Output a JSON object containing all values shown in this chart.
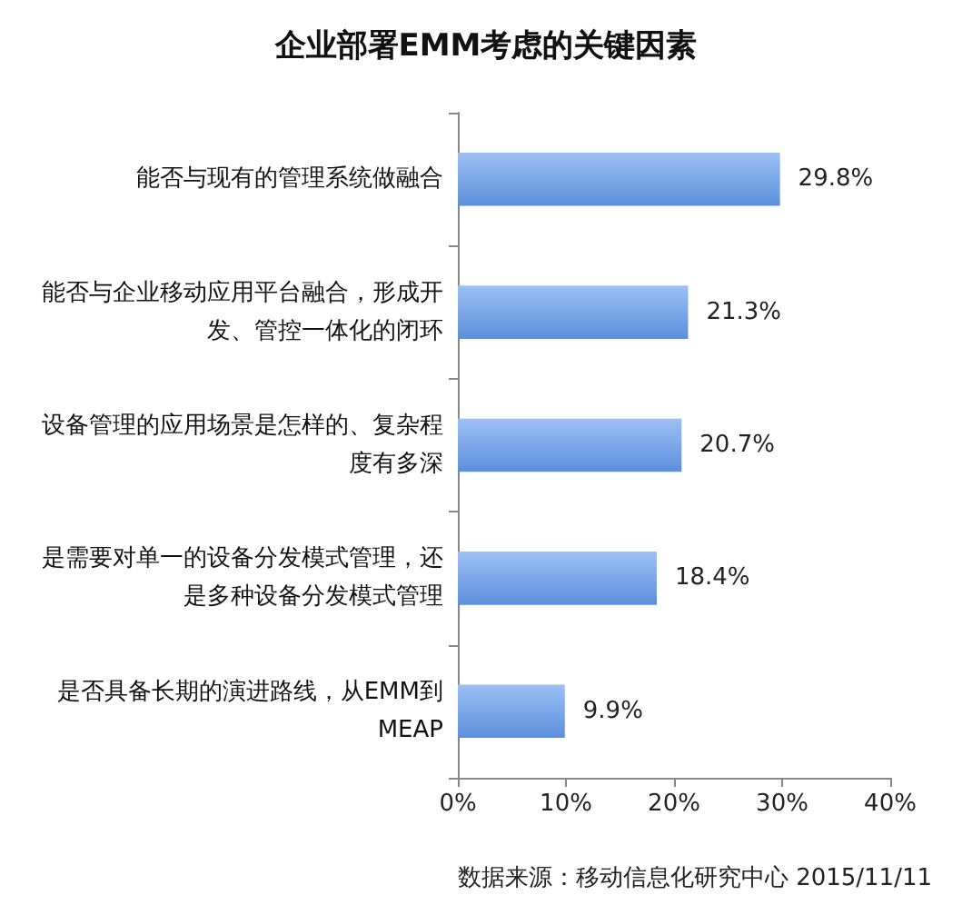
{
  "chart_data": {
    "type": "bar",
    "orientation": "horizontal",
    "title": "企业部署EMM考虑的关键因素",
    "categories": [
      "能否与现有的管理系统做融合",
      "能否与企业移动应用平台融合，形成开发、管控一体化的闭环",
      "设备管理的应用场景是怎样的、复杂程度有多深",
      "是需要对单一的设备分发模式管理，还是多种设备分发模式管理",
      "是否具备长期的演进路线，从EMM到MEAP"
    ],
    "values": [
      29.8,
      21.3,
      20.7,
      18.4,
      9.9
    ],
    "value_labels": [
      "29.8%",
      "21.3%",
      "20.7%",
      "18.4%",
      "9.9%"
    ],
    "color": "#5b8fdc",
    "xlim": [
      0,
      40
    ],
    "xticks": [
      {
        "value": 0,
        "label": "0%"
      },
      {
        "value": 10,
        "label": "10%"
      },
      {
        "value": 20,
        "label": "20%"
      },
      {
        "value": 30,
        "label": "30%"
      },
      {
        "value": 40,
        "label": "40%"
      }
    ],
    "grid": false,
    "annotations": [
      "数据来源：移动信息化研究中心 2015/11/11"
    ]
  }
}
